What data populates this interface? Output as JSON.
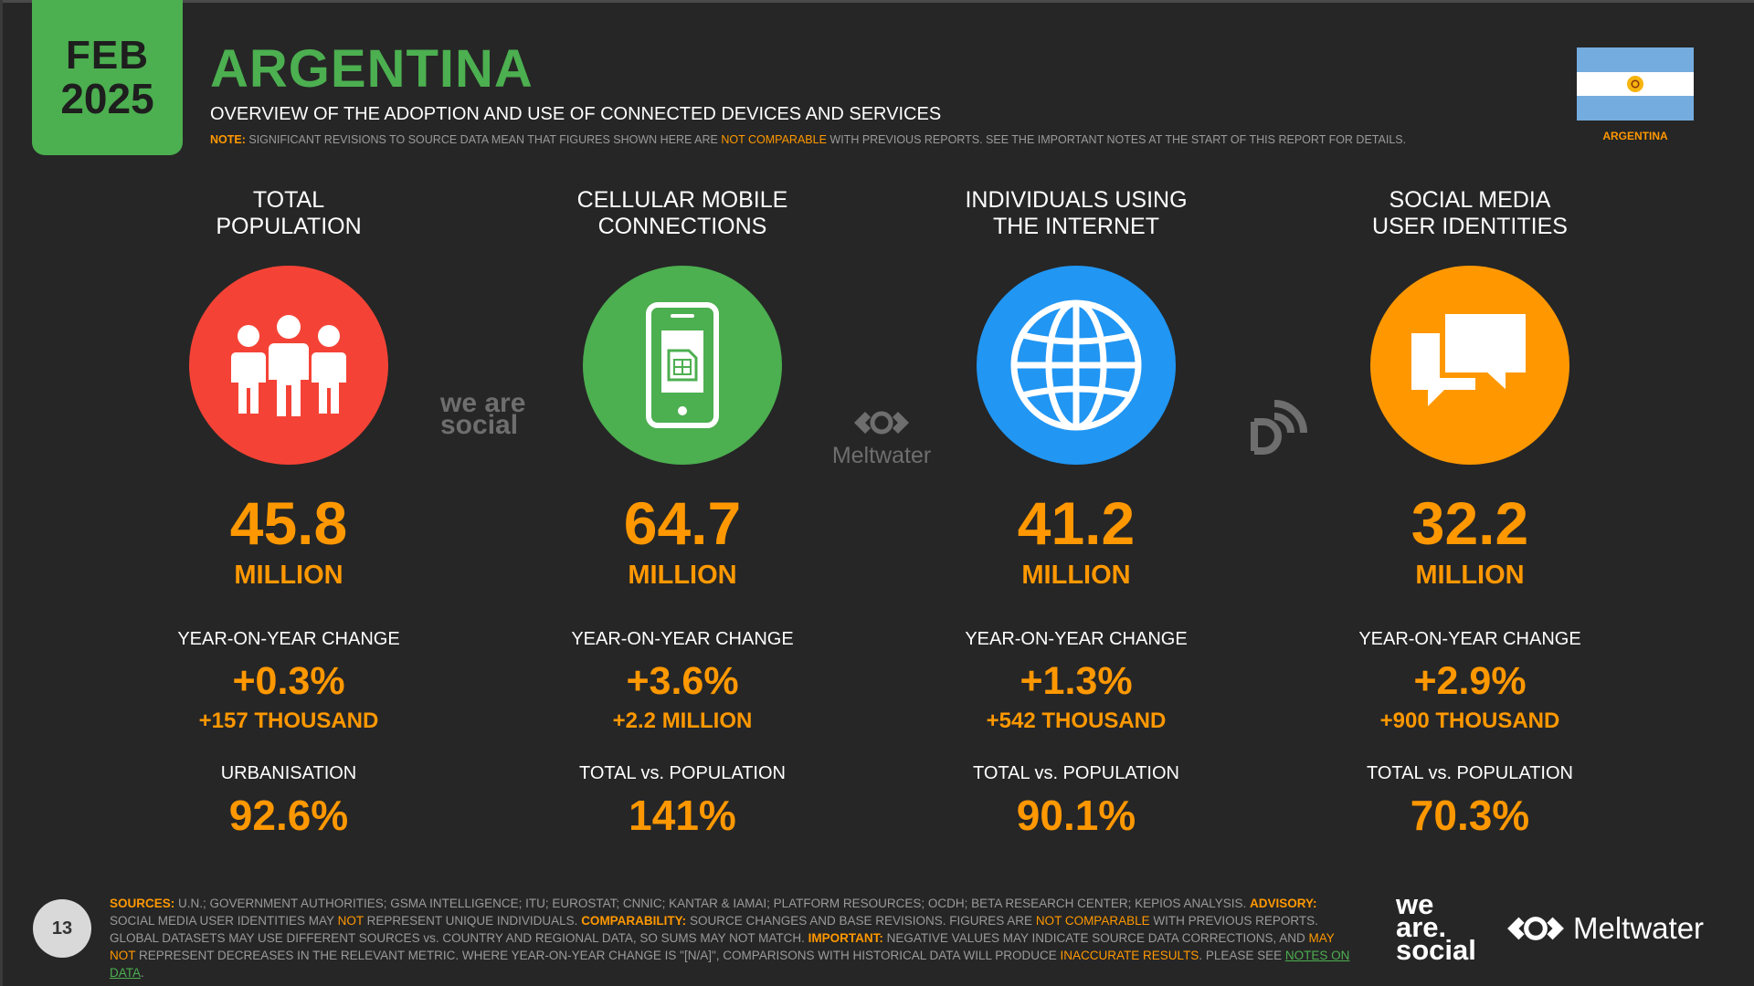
{
  "header": {
    "month": "FEB",
    "year": "2025",
    "title": "ARGENTINA",
    "subtitle": "OVERVIEW OF THE ADOPTION AND USE OF CONNECTED DEVICES AND SERVICES",
    "note_label": "NOTE:",
    "note_text_1": "SIGNIFICANT REVISIONS TO SOURCE DATA MEAN THAT FIGURES SHOWN HERE ARE",
    "note_highlight": "NOT COMPARABLE",
    "note_text_2": "WITH PREVIOUS REPORTS. SEE THE IMPORTANT NOTES AT THE START OF THIS REPORT FOR DETAILS.",
    "flag_label": "ARGENTINA"
  },
  "columns": [
    {
      "label_line1": "TOTAL",
      "label_line2": "POPULATION",
      "icon": "people-icon",
      "color": "#f44336",
      "value": "45.8",
      "unit": "MILLION",
      "change_label": "YEAR-ON-YEAR CHANGE",
      "change_pct": "+0.3%",
      "change_abs": "+157 THOUSAND",
      "extra_label": "URBANISATION",
      "extra_value": "92.6%"
    },
    {
      "label_line1": "CELLULAR MOBILE",
      "label_line2": "CONNECTIONS",
      "icon": "mobile-phone-icon",
      "color": "#4caf50",
      "value": "64.7",
      "unit": "MILLION",
      "change_label": "YEAR-ON-YEAR CHANGE",
      "change_pct": "+3.6%",
      "change_abs": "+2.2 MILLION",
      "extra_label": "TOTAL vs. POPULATION",
      "extra_value": "141%"
    },
    {
      "label_line1": "INDIVIDUALS USING",
      "label_line2": "THE INTERNET",
      "icon": "globe-icon",
      "color": "#2196f3",
      "value": "41.2",
      "unit": "MILLION",
      "change_label": "YEAR-ON-YEAR CHANGE",
      "change_pct": "+1.3%",
      "change_abs": "+542 THOUSAND",
      "extra_label": "TOTAL vs. POPULATION",
      "extra_value": "90.1%"
    },
    {
      "label_line1": "SOCIAL MEDIA",
      "label_line2": "USER IDENTITIES",
      "icon": "chat-bubbles-icon",
      "color": "#ff9800",
      "value": "32.2",
      "unit": "MILLION",
      "change_label": "YEAR-ON-YEAR CHANGE",
      "change_pct": "+2.9%",
      "change_abs": "+900 THOUSAND",
      "extra_label": "TOTAL vs. POPULATION",
      "extra_value": "70.3%"
    }
  ],
  "watermarks": {
    "we_are_social": "we are social",
    "meltwater": "Meltwater"
  },
  "footer": {
    "page_number": "13",
    "sources_label": "SOURCES:",
    "sources_text": "U.N.; GOVERNMENT AUTHORITIES; GSMA INTELLIGENCE; ITU; EUROSTAT; CNNIC; KANTAR & IAMAI; PLATFORM RESOURCES; OCDH; BETA RESEARCH CENTER; KEPIOS ANALYSIS.",
    "advisory_label": "ADVISORY:",
    "advisory_text_1": "SOCIAL MEDIA USER IDENTITIES MAY",
    "advisory_not": "NOT",
    "advisory_text_2": "REPRESENT UNIQUE INDIVIDUALS.",
    "comparability_label": "COMPARABILITY:",
    "comparability_text_1": "SOURCE CHANGES AND BASE REVISIONS. FIGURES ARE",
    "comparability_highlight": "NOT COMPARABLE",
    "comparability_text_2": "WITH PREVIOUS REPORTS. GLOBAL DATASETS MAY USE DIFFERENT SOURCES vs. COUNTRY AND REGIONAL DATA, SO SUMS MAY NOT MATCH.",
    "important_label": "IMPORTANT:",
    "important_text_1": "NEGATIVE VALUES MAY INDICATE SOURCE DATA CORRECTIONS, AND",
    "important_may_not": "MAY NOT",
    "important_text_2": "REPRESENT DECREASES IN THE RELEVANT METRIC. WHERE YEAR-ON-YEAR CHANGE IS \"[N/A]\", COMPARISONS WITH HISTORICAL DATA WILL PRODUCE",
    "inaccurate": "INACCURATE RESULTS",
    "please_see": ". PLEASE SEE",
    "notes_link": "NOTES ON DATA",
    "logo_was_line1": "we",
    "logo_was_line2": "are.",
    "logo_was_line3": "social",
    "logo_mw": "Meltwater"
  }
}
